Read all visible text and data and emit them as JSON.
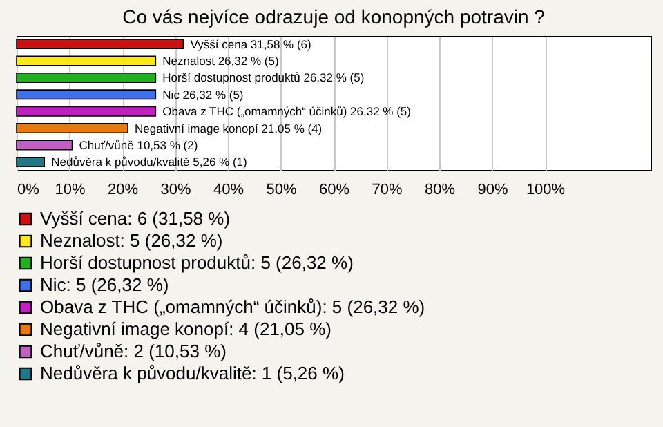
{
  "chart_data": {
    "type": "bar",
    "orientation": "horizontal",
    "title": "Co vás nejvíce odrazuje od konopných potravin ?",
    "categories": [
      null,
      null,
      null,
      null,
      null,
      null,
      null,
      null
    ],
    "series": [
      {
        "name": "Vyšší cena: 6 (31,58 %)",
        "color": "#d01010",
        "values": [
          31.58,
          null,
          null,
          null,
          null,
          null,
          null,
          null
        ],
        "value_labels": [
          "Vyšší cena 31,58 % (6)",
          null,
          null,
          null,
          null,
          null,
          null,
          null
        ]
      },
      {
        "name": "Neznalost: 5 (26,32 %)",
        "color": "#f8e81c",
        "values": [
          null,
          26.32,
          null,
          null,
          null,
          null,
          null,
          null
        ],
        "value_labels": [
          null,
          "Neznalost 26,32 % (5)",
          null,
          null,
          null,
          null,
          null,
          null
        ]
      },
      {
        "name": "Horší dostupnost produktů: 5 (26,32 %)",
        "color": "#20b020",
        "values": [
          null,
          null,
          26.32,
          null,
          null,
          null,
          null,
          null
        ],
        "value_labels": [
          null,
          null,
          "Horší dostupnost produktů 26,32 % (5)",
          null,
          null,
          null,
          null,
          null
        ]
      },
      {
        "name": "Nic: 5 (26,32 %)",
        "color": "#4070e8",
        "values": [
          null,
          null,
          null,
          26.32,
          null,
          null,
          null,
          null
        ],
        "value_labels": [
          null,
          null,
          null,
          "Nic 26,32 % (5)",
          null,
          null,
          null,
          null
        ]
      },
      {
        "name": "Obava z THC („omamných“ účinků): 5 (26,32 %)",
        "color": "#c020c0",
        "values": [
          null,
          null,
          null,
          null,
          26.32,
          null,
          null,
          null
        ],
        "value_labels": [
          null,
          null,
          null,
          null,
          "Obava z THC („omamných“ účinků) 26,32 % (5)",
          null,
          null,
          null
        ]
      },
      {
        "name": "Negativní image konopí: 4 (21,05 %)",
        "color": "#e87810",
        "values": [
          null,
          null,
          null,
          null,
          null,
          21.05,
          null,
          null
        ],
        "value_labels": [
          null,
          null,
          null,
          null,
          null,
          "Negativní image konopí 21,05 % (4)",
          null,
          null
        ]
      },
      {
        "name": "Chuť/vůně: 2 (10,53 %)",
        "color": "#c060c0",
        "values": [
          null,
          null,
          null,
          null,
          null,
          null,
          10.53,
          null
        ],
        "value_labels": [
          null,
          null,
          null,
          null,
          null,
          null,
          "Chuť/vůně 10,53 % (2)",
          null
        ]
      },
      {
        "name": "Nedůvěra k původu/kvalitě: 1 (5,26 %)",
        "color": "#207888",
        "values": [
          null,
          null,
          null,
          null,
          null,
          null,
          null,
          5.26
        ],
        "value_labels": [
          null,
          null,
          null,
          null,
          null,
          null,
          null,
          "Nedůvěra k původu/kvalitě 5,26 % (1)"
        ]
      }
    ],
    "xlim": [
      0,
      120
    ],
    "xticks": [
      {
        "value": 0,
        "label": "0%"
      },
      {
        "value": 10,
        "label": "10%"
      },
      {
        "value": 20,
        "label": "20%"
      },
      {
        "value": 30,
        "label": "30%"
      },
      {
        "value": 40,
        "label": "40%"
      },
      {
        "value": 50,
        "label": "50%"
      },
      {
        "value": 60,
        "label": "60%"
      },
      {
        "value": 70,
        "label": "70%"
      },
      {
        "value": 80,
        "label": "80%"
      },
      {
        "value": 90,
        "label": "90%"
      },
      {
        "value": 100,
        "label": "100%"
      }
    ],
    "grid": "x",
    "legend": "bottom",
    "tick_labels": "x"
  }
}
